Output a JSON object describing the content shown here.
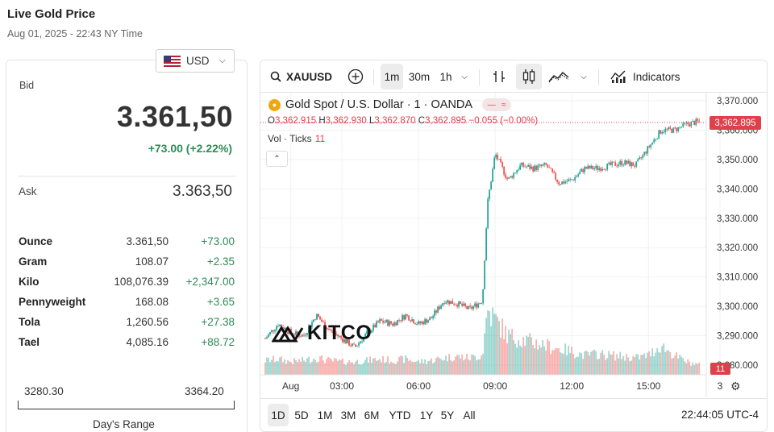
{
  "page": {
    "title": "Live Gold Price",
    "subtitle": "Aug 01, 2025 - 22:43 NY Time"
  },
  "currency": {
    "selected": "USD"
  },
  "quote": {
    "bid_label": "Bid",
    "bid": "3.361,50",
    "change": "+73.00 (+2.22%)",
    "ask_label": "Ask",
    "ask": "3.363,50"
  },
  "units": [
    {
      "name": "Ounce",
      "price": "3.361,50",
      "change": "+73.00"
    },
    {
      "name": "Gram",
      "price": "108.07",
      "change": "+2.35"
    },
    {
      "name": "Kilo",
      "price": "108,076.39",
      "change": "+2,347.00"
    },
    {
      "name": "Pennyweight",
      "price": "168.08",
      "change": "+3.65"
    },
    {
      "name": "Tola",
      "price": "1,260.56",
      "change": "+27.38"
    },
    {
      "name": "Tael",
      "price": "4,085.16",
      "change": "+88.72"
    }
  ],
  "day_range": {
    "low": "3280.30",
    "high": "3364.20",
    "label": "Day's Range"
  },
  "toolbar": {
    "symbol": "XAUUSD",
    "intervals": [
      "1m",
      "30m",
      "1h"
    ],
    "active_interval": "1m",
    "indicators_label": "Indicators"
  },
  "legend": {
    "title": "Gold Spot / U.S. Dollar · 1 · OANDA",
    "o": "3,362.915",
    "h": "3,362.930",
    "l": "3,362.870",
    "c": "3,362.895",
    "chg": "−0.055 (−0.00%)",
    "vol_label": "Vol · Ticks",
    "vol_value": "11"
  },
  "watermark": "KITCO",
  "price_tag": "3,362.895",
  "vol_tag": "11",
  "ranges": [
    "1D",
    "5D",
    "1M",
    "3M",
    "6M",
    "YTD",
    "1Y",
    "5Y",
    "All"
  ],
  "active_range": "1D",
  "clock": "22:44:05 UTC-4",
  "colors": {
    "up": "#26a69a",
    "down": "#ef5350",
    "accent": "#e0404c",
    "positive": "#2e8b57"
  },
  "chart_data": {
    "type": "candlestick",
    "y_ticks": [
      "3,370.000",
      "3,360.000",
      "3,350.000",
      "3,340.000",
      "3,330.000",
      "3,320.000",
      "3,310.000",
      "3,300.000",
      "3,290.000",
      "3,280.000"
    ],
    "x_ticks": [
      "Aug",
      "03:00",
      "06:00",
      "09:00",
      "12:00",
      "15:00",
      "3"
    ],
    "ylim": [
      3280,
      3372
    ],
    "x_hours": [
      0,
      0.5,
      1,
      1.5,
      2,
      2.5,
      3,
      3.5,
      4,
      4.5,
      5,
      5.5,
      6,
      6.5,
      7,
      7.5,
      8,
      8.5,
      8.7,
      9,
      9.5,
      10,
      10.5,
      11,
      11.5,
      12,
      12.5,
      13,
      13.5,
      14,
      14.5,
      15,
      15.5,
      16,
      16.5,
      17
    ],
    "close": [
      3289,
      3294,
      3291,
      3290,
      3297,
      3292,
      3289,
      3286,
      3291,
      3295,
      3294,
      3297,
      3294,
      3296,
      3302,
      3301,
      3299,
      3302,
      3335,
      3352,
      3343,
      3348,
      3347,
      3348,
      3342,
      3343,
      3347,
      3347,
      3348,
      3349,
      3348,
      3354,
      3360,
      3360,
      3362,
      3363
    ],
    "volume_level": [
      0.22,
      0.24,
      0.2,
      0.22,
      0.26,
      0.22,
      0.2,
      0.2,
      0.22,
      0.24,
      0.22,
      0.24,
      0.2,
      0.22,
      0.26,
      0.28,
      0.26,
      0.3,
      1.0,
      0.85,
      0.6,
      0.55,
      0.5,
      0.45,
      0.4,
      0.36,
      0.3,
      0.32,
      0.3,
      0.28,
      0.26,
      0.3,
      0.45,
      0.3,
      0.2,
      0.15
    ]
  }
}
